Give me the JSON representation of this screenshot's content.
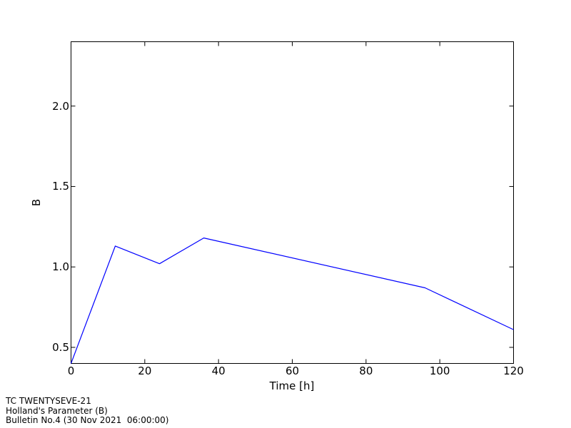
{
  "chart_data": {
    "type": "line",
    "title": "",
    "xlabel": "Time [h]",
    "ylabel": "B",
    "xlim": [
      0,
      120
    ],
    "ylim": [
      0.4,
      2.4
    ],
    "xticks": [
      0,
      20,
      40,
      60,
      80,
      100,
      120
    ],
    "xtick_labels": [
      "0",
      "20",
      "40",
      "60",
      "80",
      "100",
      "120"
    ],
    "yticks": [
      0.5,
      1.0,
      1.5,
      2.0
    ],
    "ytick_labels": [
      "0.5",
      "1.0",
      "1.5",
      "2.0"
    ],
    "grid": false,
    "legend": "none",
    "line_color": "#0000ff",
    "axis_color": "#000000",
    "background_color": "#ffffff",
    "series": [
      {
        "name": "Holland's Parameter (B)",
        "x": [
          0,
          12,
          24,
          36,
          96,
          120
        ],
        "y": [
          0.4,
          1.13,
          1.02,
          1.18,
          0.87,
          0.61
        ]
      }
    ]
  },
  "footer": {
    "line1": "TC TWENTYSEVE-21",
    "line2": "Holland's Parameter (B)",
    "line3": "Bulletin No.4 (30 Nov 2021  06:00:00)"
  }
}
